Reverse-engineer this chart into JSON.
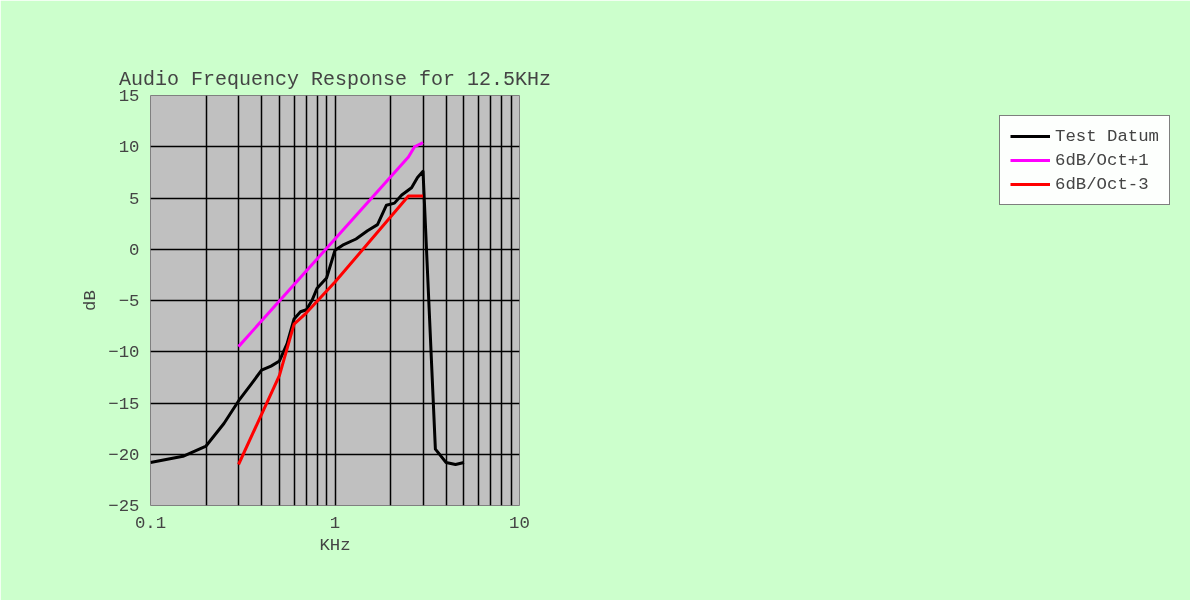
{
  "chart_data": {
    "type": "line",
    "title": "Audio Frequency Response for 12.5KHz",
    "xlabel": "KHz",
    "ylabel": "dB",
    "log": "x",
    "xlim": [
      0.1,
      10
    ],
    "xticks": [
      0.1,
      1,
      10
    ],
    "ylim": [
      -25,
      15
    ],
    "yticks": [
      -25,
      -20,
      -15,
      -10,
      -5,
      0,
      5,
      10,
      15
    ],
    "grid": true,
    "legend": "right",
    "marker": "none",
    "line_style": "solid",
    "series": [
      {
        "name": "Test Datum",
        "color": "#000000",
        "x": [
          0.1,
          0.15,
          0.2,
          0.25,
          0.3,
          0.35,
          0.4,
          0.45,
          0.5,
          0.55,
          0.6,
          0.65,
          0.7,
          0.75,
          0.8,
          0.9,
          1.0,
          1.1,
          1.3,
          1.5,
          1.7,
          1.9,
          2.1,
          2.3,
          2.6,
          2.8,
          3.0,
          3.5,
          4.0,
          4.5,
          5.0
        ],
        "values": [
          -20.8,
          -20.2,
          -19.2,
          -17,
          -14.8,
          -13.2,
          -11.8,
          -11.4,
          -10.9,
          -9.2,
          -6.8,
          -6.1,
          -5.9,
          -5,
          -3.8,
          -2.8,
          -0.1,
          0.4,
          1.0,
          1.8,
          2.4,
          4.3,
          4.5,
          5.3,
          6.0,
          7.0,
          7.6,
          -19.5,
          -20.8,
          -21,
          -20.8
        ]
      },
      {
        "name": "6dB/Oct+1",
        "color": "#ff00ff",
        "x": [
          0.3,
          2.5,
          2.7,
          3.0
        ],
        "values": [
          -9.5,
          9.0,
          10.0,
          10.4
        ]
      },
      {
        "name": "6dB/Oct-3",
        "color": "#ff0000",
        "x": [
          0.3,
          0.5,
          0.6,
          0.7,
          1.0,
          2.5,
          3.0
        ],
        "values": [
          -21,
          -12.3,
          -7.3,
          -6.2,
          -3.2,
          5.2,
          5.2
        ]
      }
    ]
  }
}
